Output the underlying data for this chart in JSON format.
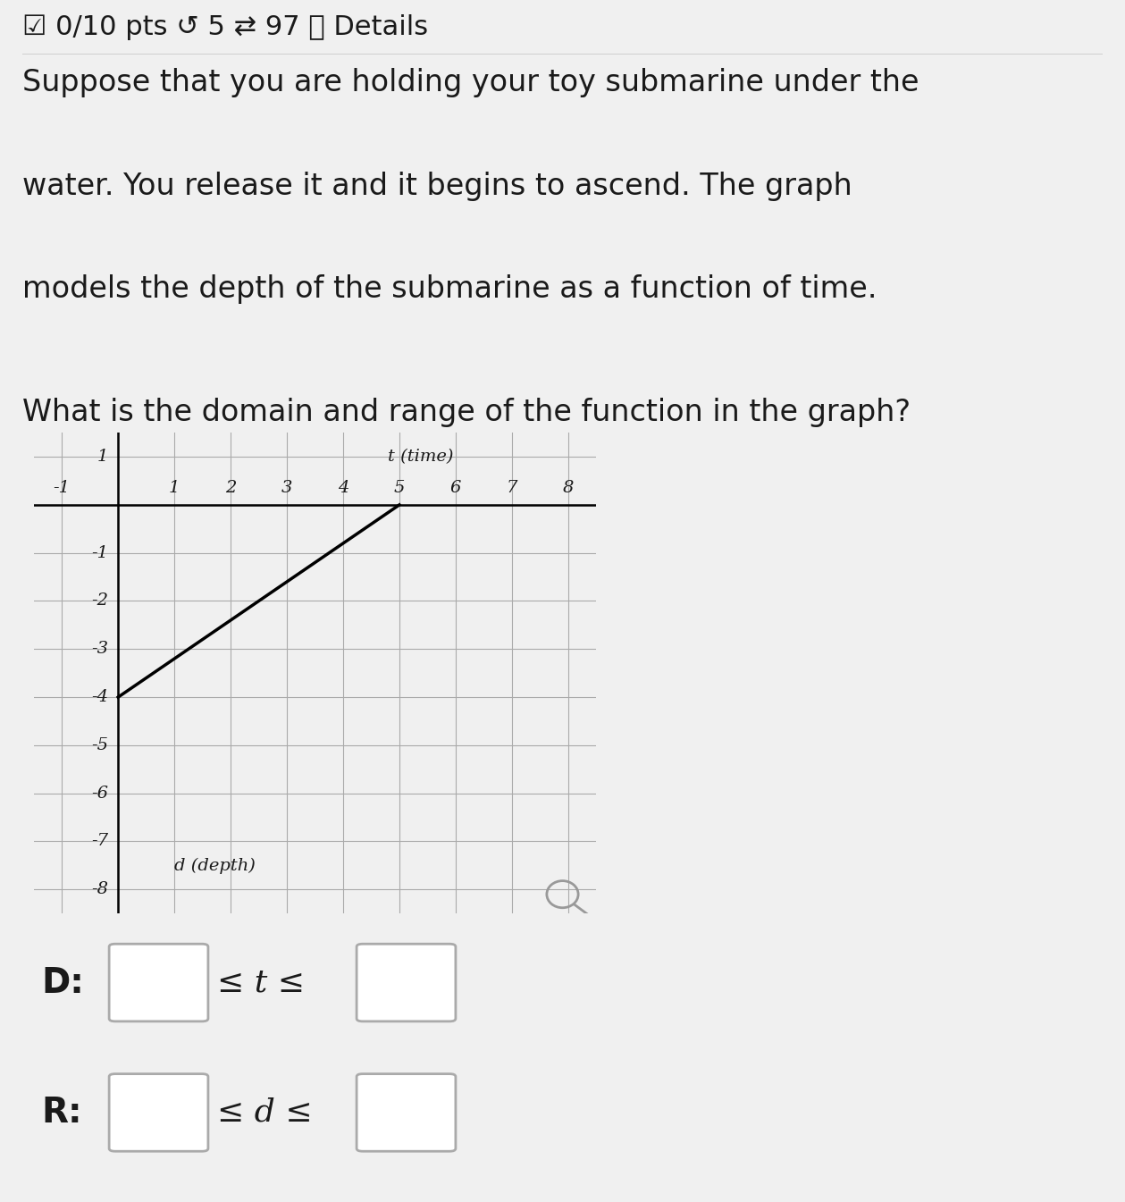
{
  "bg_color": "#f0f0f0",
  "header_text": "☑ 0/10 pts ↺ 5 ⇄ 97 ⓘ Details",
  "paragraph1_line1": "Suppose that you are holding your toy submarine under the",
  "paragraph1_line2": "water. You release it and it begins to ascend. The graph",
  "paragraph1_line3": "models the depth of the submarine as a function of time.",
  "paragraph2": "What is the domain and range of the function in the graph?",
  "line_x": [
    0,
    5
  ],
  "line_y": [
    -4,
    0
  ],
  "x_label": "t (time)",
  "y_label": "d (depth)",
  "x_ticks": [
    -1,
    1,
    2,
    3,
    4,
    5,
    6,
    7,
    8
  ],
  "y_ticks": [
    1,
    -1,
    -2,
    -3,
    -4,
    -5,
    -6,
    -7,
    -8
  ],
  "xlim": [
    -1.5,
    8.5
  ],
  "ylim": [
    -8.5,
    1.5
  ],
  "domain_label": "D:",
  "range_label": "R:",
  "leq_t": "≤ t ≤",
  "leq_d": "≤ d ≤",
  "line_color": "#000000",
  "grid_color": "#aaaaaa",
  "axis_color": "#000000",
  "text_color": "#1a1a1a",
  "box_color": "#aaaaaa",
  "header_sep_color": "#cccccc"
}
